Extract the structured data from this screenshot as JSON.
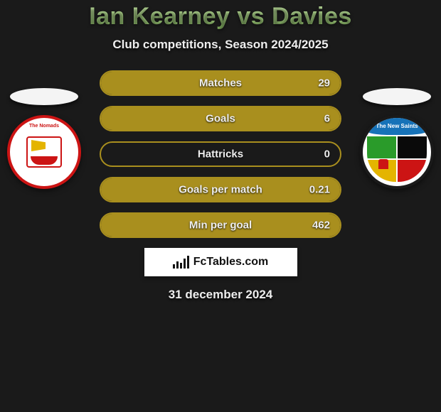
{
  "title": "Ian Kearney vs Davies",
  "subtitle": "Club competitions, Season 2024/2025",
  "date": "31 december 2024",
  "brand": "FcTables.com",
  "colors": {
    "bar_fill": "#a98f1e",
    "bar_border": "#a98f1e",
    "bg": "#1a1a1a",
    "title_gradient_top": "#c8e8a8",
    "title_gradient_bottom": "#8bbf63"
  },
  "left_team": {
    "name": "The Nomads",
    "crest_primary": "#cc1414",
    "crest_bg": "#ffffff"
  },
  "right_team": {
    "name": "The New Saints",
    "crest_banner": "#1672b8",
    "crest_q1": "#2a9b2a",
    "crest_q2": "#0a0a0a",
    "crest_q3": "#e4b400",
    "crest_q4": "#cc1414"
  },
  "stats": [
    {
      "label": "Matches",
      "value": "29",
      "fill_pct": 100
    },
    {
      "label": "Goals",
      "value": "6",
      "fill_pct": 100
    },
    {
      "label": "Hattricks",
      "value": "0",
      "fill_pct": 0
    },
    {
      "label": "Goals per match",
      "value": "0.21",
      "fill_pct": 100
    },
    {
      "label": "Min per goal",
      "value": "462",
      "fill_pct": 100
    }
  ]
}
